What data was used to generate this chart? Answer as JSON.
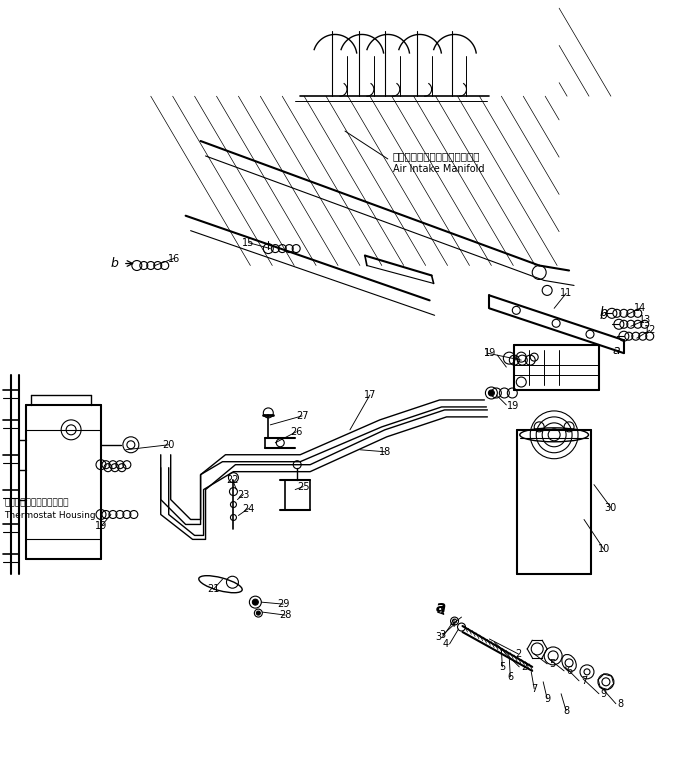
{
  "bg_color": "#ffffff",
  "line_color": "#000000",
  "fig_width": 6.84,
  "fig_height": 7.81,
  "dpi": 100,
  "labels": {
    "air_intake_jp": "エアーインテークマニホールド",
    "air_intake_en": "Air Intake Manifold",
    "thermostat_jp": "サーモスタットハウジング",
    "thermostat_en": "Thermostat Housing"
  }
}
